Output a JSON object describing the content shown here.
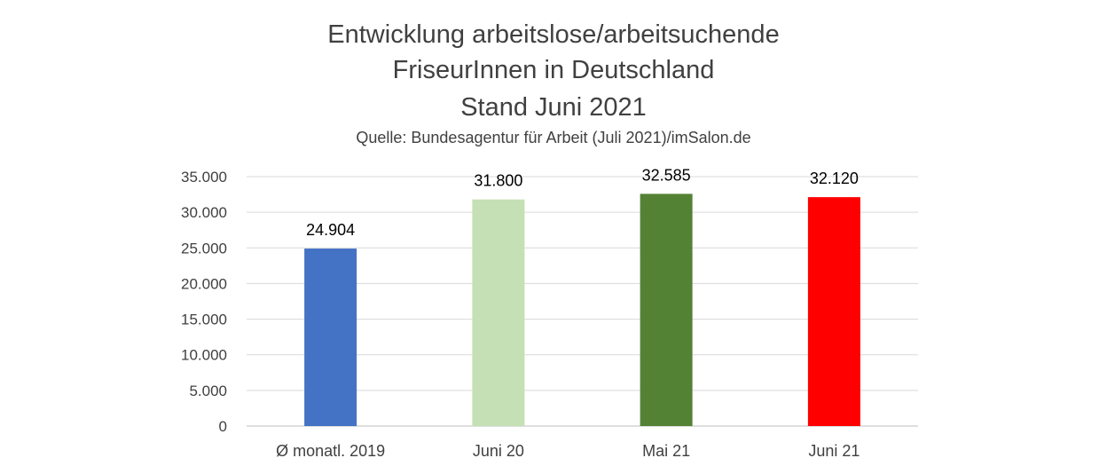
{
  "chart_data": {
    "type": "bar",
    "title_lines": [
      "Entwicklung arbeitslose/arbeitsuchende",
      "FriseurInnen in Deutschland",
      "Stand Juni 2021"
    ],
    "subtitle": "Quelle: Bundesagentur für Arbeit (Juli 2021)/imSalon.de",
    "categories": [
      "Ø monatl. 2019",
      "Juni 20",
      "Mai 21",
      "Juni 21"
    ],
    "values": [
      24904,
      31800,
      32585,
      32120
    ],
    "value_labels": [
      "24.904",
      "31.800",
      "32.585",
      "32.120"
    ],
    "bar_colors": [
      "#4472C4",
      "#C5E0B4",
      "#548235",
      "#FF0000"
    ],
    "ylim": [
      0,
      35000
    ],
    "yticks": [
      0,
      5000,
      10000,
      15000,
      20000,
      25000,
      30000,
      35000
    ],
    "ytick_labels": [
      "0",
      "5.000",
      "10.000",
      "15.000",
      "20.000",
      "25.000",
      "30.000",
      "35.000"
    ],
    "grid": true,
    "legend": "none"
  }
}
